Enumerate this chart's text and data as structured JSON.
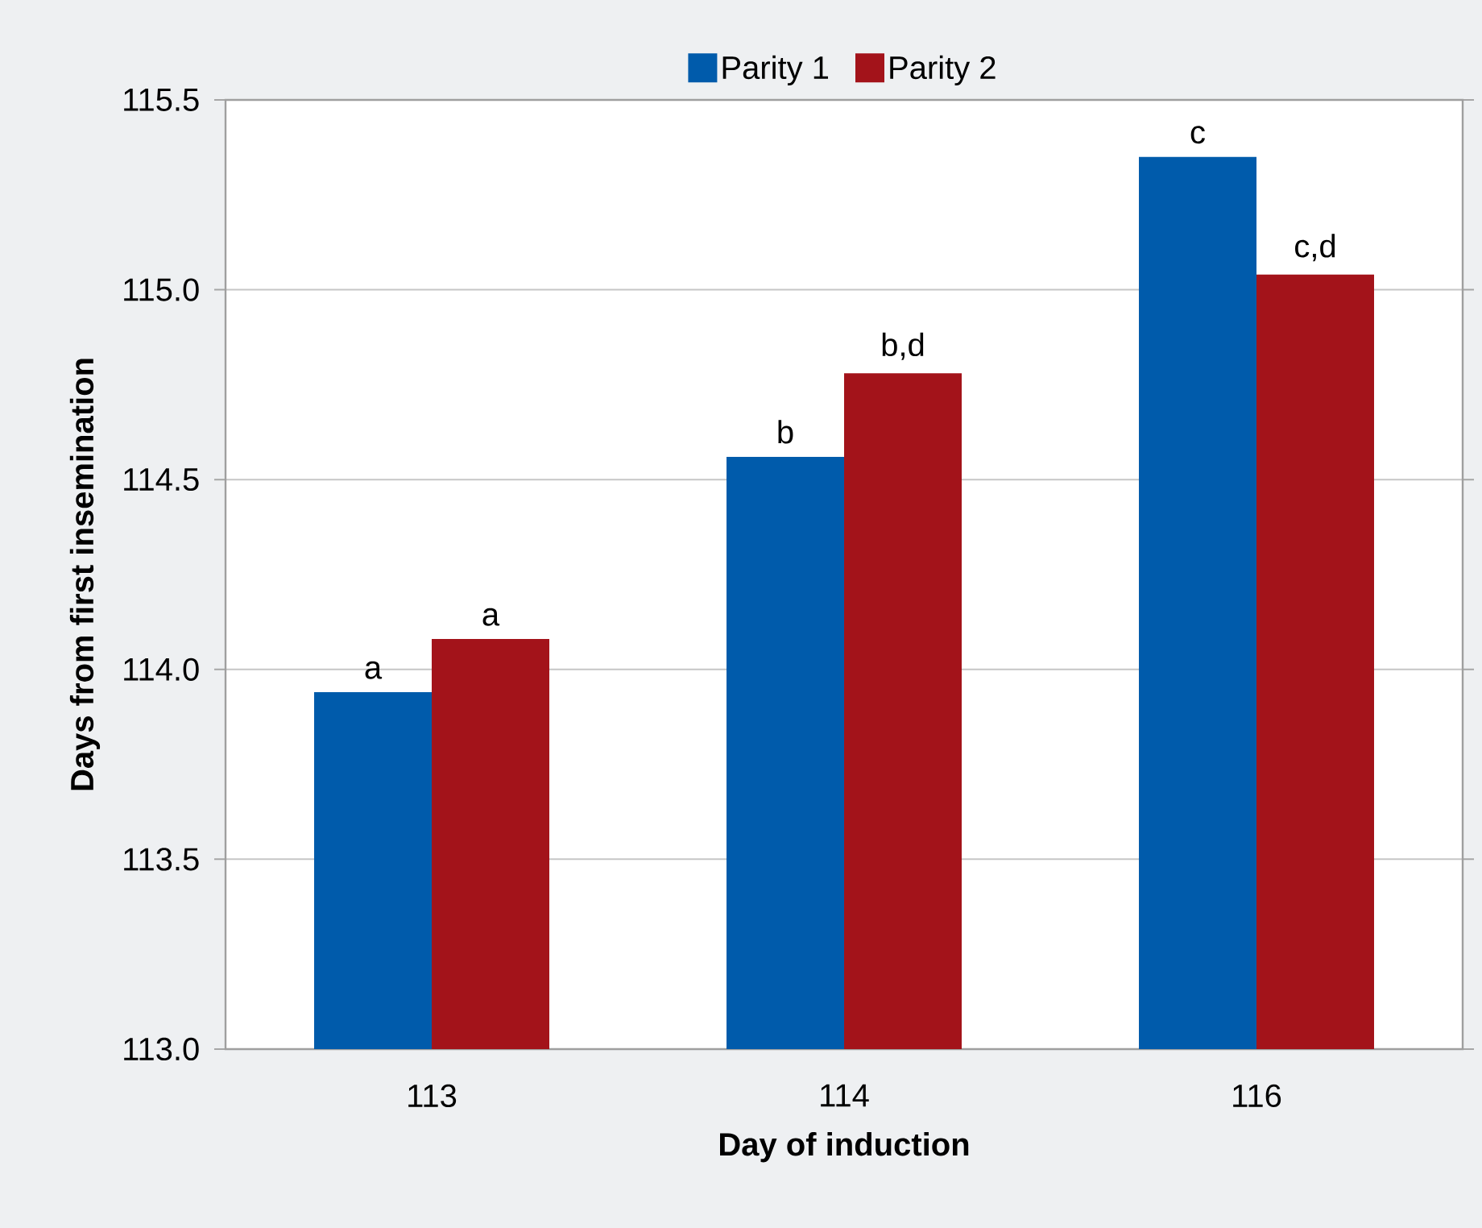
{
  "chart_data": {
    "type": "bar",
    "xlabel": "Day of induction",
    "ylabel": "Days from first insemination",
    "categories": [
      "113",
      "114",
      "116"
    ],
    "series": [
      {
        "name": "Parity 1",
        "color": "#005bab",
        "values": [
          113.94,
          114.56,
          115.35
        ]
      },
      {
        "name": "Parity 2",
        "color": "#a3131a",
        "values": [
          114.08,
          114.78,
          115.04
        ]
      }
    ],
    "ylim": [
      113.0,
      115.5
    ],
    "yticks": [
      {
        "value": 113.0,
        "label": "113.0"
      },
      113.5,
      {
        "value": 114.0,
        "label": "114.0"
      },
      114.5,
      {
        "value": 115.0,
        "label": "115.0"
      },
      115.5
    ],
    "grid": "y",
    "legend": "top",
    "annotations": [
      {
        "text": "a",
        "x": "113",
        "y": 113.94
      },
      {
        "text": "a",
        "x": "113",
        "y": 114.08
      },
      {
        "text": "b",
        "x": "114",
        "y": 114.56
      },
      {
        "text": "b,d",
        "x": "114",
        "y": 114.78
      },
      {
        "text": "c",
        "x": "116",
        "y": 115.35
      },
      {
        "text": "c,d",
        "x": "116",
        "y": 115.04
      }
    ]
  }
}
